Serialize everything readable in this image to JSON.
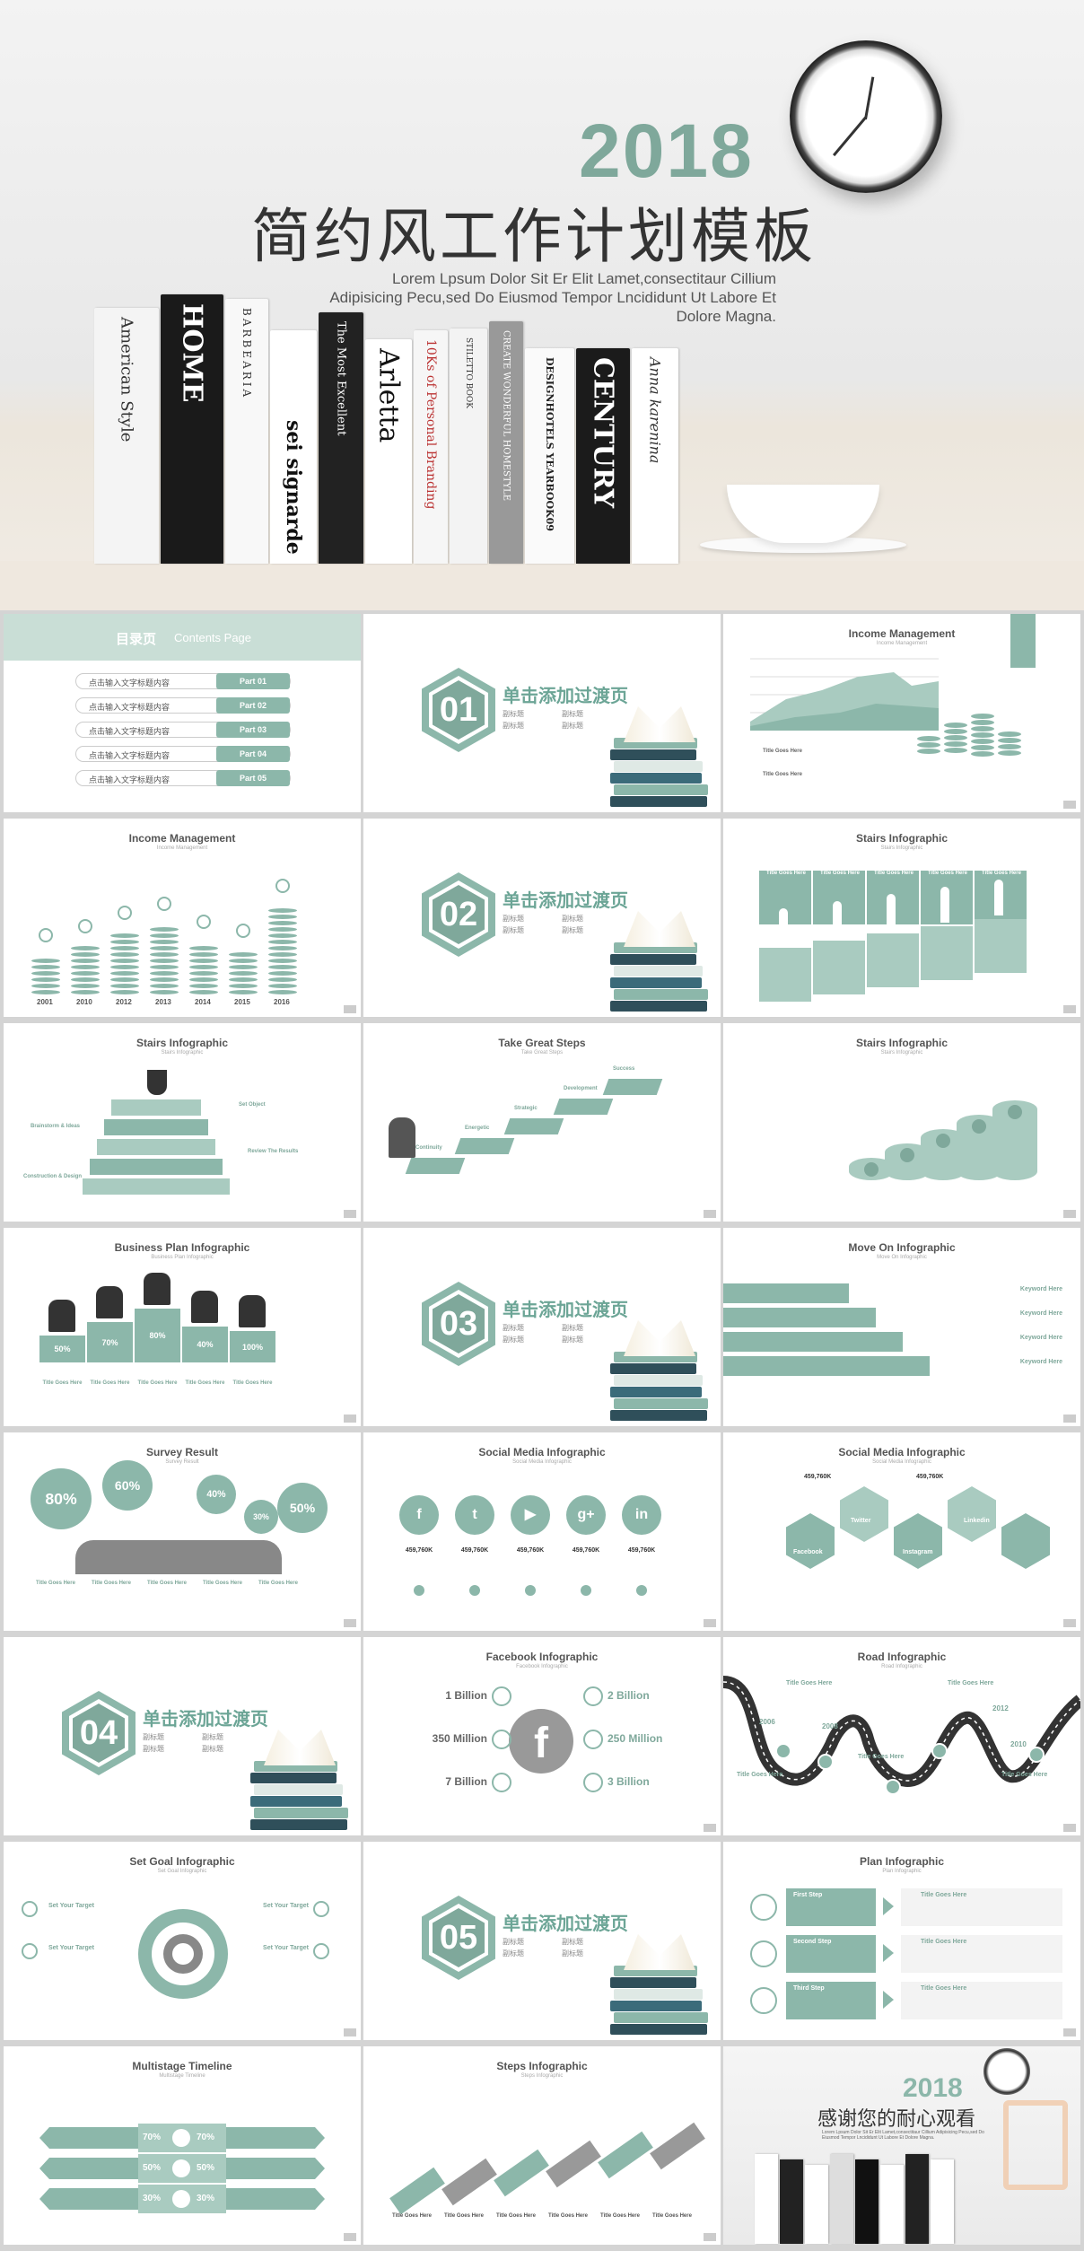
{
  "cover": {
    "year": "2018",
    "title": "简约风工作计划模板",
    "subtitle_lines": [
      "Lorem Lpsum Dolor Sit Er Elit Lamet,consectitaur Cillium",
      "Adipisicing Pecu,sed Do Eiusmod Tempor Lncididunt Ut Labore Et",
      "Dolore Magna."
    ],
    "books": [
      "American Style",
      "HOME",
      "BARBEARIA",
      "sei signarde",
      "The Most Excellent",
      "Arletta",
      "10Ks of Personal Branding",
      "STILETTO BOOK",
      "CREATE WONDERFUL HOMESTYLE",
      "DESIGNHOTELS YEARBOOK09",
      "CENTURY",
      "Anna karenina"
    ]
  },
  "toc": {
    "title": "目录页",
    "title_en": "Contents Page",
    "items": [
      {
        "text": "点击输入文字标题内容",
        "part": "Part 01"
      },
      {
        "text": "点击输入文字标题内容",
        "part": "Part 02"
      },
      {
        "text": "点击输入文字标题内容",
        "part": "Part 03"
      },
      {
        "text": "点击输入文字标题内容",
        "part": "Part 04"
      },
      {
        "text": "点击输入文字标题内容",
        "part": "Part 05"
      }
    ]
  },
  "section_label": "单击添加过渡页",
  "section_item": "副标题",
  "sections": [
    "01",
    "02",
    "03",
    "04",
    "05"
  ],
  "slides": {
    "income1": {
      "title": "Income Management",
      "sub": "Income Management",
      "t1": "Title Goes Here",
      "t2": "Title Goes Here"
    },
    "income2": {
      "title": "Income Management",
      "sub": "Income Management",
      "years": [
        "2001",
        "2010",
        "2012",
        "2013",
        "2014",
        "2015",
        "2016"
      ]
    },
    "stairs1": {
      "title": "Stairs Infographic",
      "sub": "Stairs Infographic",
      "cols": [
        "Title Goes Here",
        "Title Goes Here",
        "Title Goes Here",
        "Title Goes Here",
        "Title Goes Here"
      ]
    },
    "stairs2": {
      "title": "Stairs Infographic",
      "sub": "Stairs Infographic",
      "labels": [
        "Brainstorm & Ideas",
        "Construction & Design",
        "Set Object",
        "Review The Results"
      ]
    },
    "steps": {
      "title": "Take Great Steps",
      "sub": "Take Great Steps",
      "labels": [
        "Continuity",
        "Energetic",
        "Strategic",
        "Development",
        "Success"
      ]
    },
    "stairs3": {
      "title": "Stairs Infographic",
      "sub": "Stairs Infographic"
    },
    "business": {
      "title": "Business Plan Infographic",
      "sub": "Business Plan Infographic",
      "values": [
        "50%",
        "70%",
        "80%",
        "40%",
        "100%"
      ],
      "col": "Title Goes Here"
    },
    "moveon": {
      "title": "Move On Infographic",
      "sub": "Move On Infographic",
      "kw": "Keyword Here"
    },
    "survey": {
      "title": "Survey Result",
      "sub": "Survey Result",
      "values": [
        "80%",
        "60%",
        "40%",
        "30%",
        "50%"
      ],
      "col": "Title Goes Here"
    },
    "social1": {
      "title": "Social Media Infographic",
      "sub": "Social Media Infographic",
      "value": "459,760K"
    },
    "social2": {
      "title": "Social Media Infographic",
      "sub": "Social Media Infographic",
      "value": "459,760K",
      "labels": [
        "Facebook",
        "Twitter",
        "Linkedin",
        "Instagram"
      ]
    },
    "facebook": {
      "title": "Facebook Infographic",
      "sub": "Facebook Infographic",
      "left": [
        "1 Billion",
        "350 Million",
        "7 Billion"
      ],
      "right": [
        "2 Billion",
        "250 Million",
        "3 Billion"
      ]
    },
    "road": {
      "title": "Road Infographic",
      "sub": "Road Infographic",
      "years": [
        "2006",
        "2008",
        "2010",
        "2012"
      ],
      "tg": "Title Goes Here"
    },
    "goal": {
      "title": "Set Goal Infographic",
      "sub": "Set Goal Infographic",
      "label": "Set Your Target"
    },
    "plan": {
      "title": "Plan Infographic",
      "sub": "Plan Infographic",
      "steps": [
        "First Step",
        "Second Step",
        "Third Step"
      ],
      "tg": "Title Goes Here"
    },
    "timeline": {
      "title": "Multistage Timeline",
      "sub": "Multistage Timeline",
      "values": [
        "70%",
        "70%",
        "50%",
        "50%",
        "30%",
        "30%"
      ]
    },
    "stepsinfo": {
      "title": "Steps Infographic",
      "sub": "Steps Infographic",
      "tg": "Title Goes Here"
    },
    "end": {
      "year": "2018",
      "title": "感谢您的耐心观看",
      "sub": "Lorem Lpsum Dolor Sit Er Elit Lamet,consectitaur Cillium Adipisicing Pecu,sed Do Eiusmod Tempor Lncididunt Ut Labore Et Dolore Magna."
    }
  },
  "colors": {
    "accent": "#8cb7aa",
    "accent_dark": "#7fa89b",
    "gray": "#888888"
  }
}
